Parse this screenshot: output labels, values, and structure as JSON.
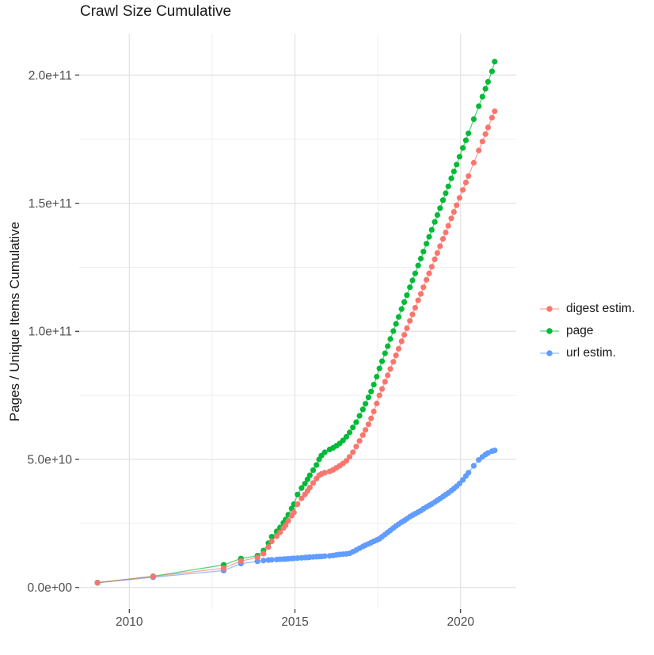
{
  "chart_data": {
    "type": "line-scatter",
    "title": "Crawl Size Cumulative",
    "xlabel": "",
    "ylabel": "Pages / Unique Items Cumulative",
    "value_unit": "counts; point y-values stored in billions (multiply by 1e9)",
    "grid": true,
    "legend_position": "right",
    "x_axis": {
      "major_ticks": [
        {
          "label": "2010",
          "value": 2010
        },
        {
          "label": "2015",
          "value": 2015
        },
        {
          "label": "2020",
          "value": 2020
        }
      ],
      "minor_gridlines": [
        2012.5,
        2017.5
      ],
      "range": [
        2008.5,
        2021.7
      ]
    },
    "y_axis": {
      "major_ticks": [
        {
          "label": "0.0e+00",
          "value_e9": 0
        },
        {
          "label": "5.0e+10",
          "value_e9": 50
        },
        {
          "label": "1.0e+11",
          "value_e9": 100
        },
        {
          "label": "1.5e+11",
          "value_e9": 150
        },
        {
          "label": "2.0e+11",
          "value_e9": 200
        }
      ],
      "minor_gridlines_e9": [
        25,
        75,
        125,
        175
      ],
      "range_e9": [
        -8,
        216
      ]
    },
    "draw_order": [
      "url estim.",
      "page",
      "digest estim."
    ],
    "series": [
      {
        "name": "digest estim.",
        "color": "#F8766D",
        "points": [
          [
            2009.04,
            1.9
          ],
          [
            2010.72,
            4.3
          ],
          [
            2012.85,
            7.5
          ],
          [
            2013.37,
            10.3
          ],
          [
            2013.87,
            11.7
          ],
          [
            2014.05,
            13.2
          ],
          [
            2014.2,
            15.8
          ],
          [
            2014.3,
            18.0
          ],
          [
            2014.45,
            20.0
          ],
          [
            2014.55,
            21.5
          ],
          [
            2014.65,
            23.2
          ],
          [
            2014.72,
            24.3
          ],
          [
            2014.8,
            26.0
          ],
          [
            2014.9,
            28.0
          ],
          [
            2014.97,
            29.3
          ],
          [
            2015.08,
            32.5
          ],
          [
            2015.2,
            34.8
          ],
          [
            2015.3,
            36.3
          ],
          [
            2015.38,
            37.7
          ],
          [
            2015.45,
            39.0
          ],
          [
            2015.55,
            40.8
          ],
          [
            2015.65,
            42.5
          ],
          [
            2015.73,
            43.8
          ],
          [
            2015.8,
            44.3
          ],
          [
            2015.9,
            44.8
          ],
          [
            2016.05,
            45.3
          ],
          [
            2016.15,
            45.9
          ],
          [
            2016.25,
            46.7
          ],
          [
            2016.35,
            47.5
          ],
          [
            2016.45,
            48.4
          ],
          [
            2016.55,
            49.4
          ],
          [
            2016.65,
            51.0
          ],
          [
            2016.75,
            52.8
          ],
          [
            2016.85,
            55.0
          ],
          [
            2016.95,
            57.2
          ],
          [
            2017.05,
            59.5
          ],
          [
            2017.13,
            61.5
          ],
          [
            2017.22,
            63.7
          ],
          [
            2017.3,
            66.0
          ],
          [
            2017.38,
            68.7
          ],
          [
            2017.47,
            71.8
          ],
          [
            2017.55,
            75.0
          ],
          [
            2017.63,
            77.5
          ],
          [
            2017.72,
            80.3
          ],
          [
            2017.8,
            82.8
          ],
          [
            2017.88,
            85.3
          ],
          [
            2017.97,
            88.1
          ],
          [
            2018.05,
            90.6
          ],
          [
            2018.13,
            93.2
          ],
          [
            2018.22,
            96.1
          ],
          [
            2018.3,
            98.6
          ],
          [
            2018.38,
            101.2
          ],
          [
            2018.47,
            104.1
          ],
          [
            2018.55,
            106.6
          ],
          [
            2018.63,
            109.2
          ],
          [
            2018.72,
            112.1
          ],
          [
            2018.8,
            114.6
          ],
          [
            2018.88,
            117.2
          ],
          [
            2018.97,
            120.1
          ],
          [
            2019.05,
            122.6
          ],
          [
            2019.13,
            125.2
          ],
          [
            2019.22,
            128.1
          ],
          [
            2019.3,
            130.6
          ],
          [
            2019.38,
            133.2
          ],
          [
            2019.47,
            136.1
          ],
          [
            2019.55,
            138.6
          ],
          [
            2019.63,
            141.2
          ],
          [
            2019.72,
            144.1
          ],
          [
            2019.8,
            146.6
          ],
          [
            2019.88,
            149.2
          ],
          [
            2019.97,
            152.1
          ],
          [
            2020.07,
            155.2
          ],
          [
            2020.16,
            158.1
          ],
          [
            2020.24,
            160.6
          ],
          [
            2020.4,
            165.8
          ],
          [
            2020.55,
            170.6
          ],
          [
            2020.66,
            174.1
          ],
          [
            2020.75,
            177.0
          ],
          [
            2020.83,
            179.6
          ],
          [
            2020.95,
            183.4
          ],
          [
            2021.03,
            185.9
          ]
        ]
      },
      {
        "name": "page",
        "color": "#00BA38",
        "points": [
          [
            2009.04,
            1.85
          ],
          [
            2010.72,
            4.35
          ],
          [
            2012.85,
            8.8
          ],
          [
            2013.37,
            11.3
          ],
          [
            2013.87,
            12.4
          ],
          [
            2014.05,
            14.4
          ],
          [
            2014.2,
            17.3
          ],
          [
            2014.3,
            19.8
          ],
          [
            2014.45,
            21.9
          ],
          [
            2014.55,
            23.4
          ],
          [
            2014.65,
            25.2
          ],
          [
            2014.72,
            26.5
          ],
          [
            2014.8,
            28.4
          ],
          [
            2014.9,
            30.8
          ],
          [
            2014.97,
            32.5
          ],
          [
            2015.08,
            36.3
          ],
          [
            2015.2,
            38.8
          ],
          [
            2015.3,
            40.5
          ],
          [
            2015.38,
            42.2
          ],
          [
            2015.45,
            43.8
          ],
          [
            2015.55,
            45.8
          ],
          [
            2015.65,
            47.8
          ],
          [
            2015.73,
            50.0
          ],
          [
            2015.8,
            51.5
          ],
          [
            2015.9,
            52.8
          ],
          [
            2016.05,
            53.9
          ],
          [
            2016.15,
            54.5
          ],
          [
            2016.25,
            55.3
          ],
          [
            2016.35,
            56.2
          ],
          [
            2016.45,
            57.4
          ],
          [
            2016.55,
            58.8
          ],
          [
            2016.65,
            60.5
          ],
          [
            2016.75,
            62.5
          ],
          [
            2016.85,
            64.5
          ],
          [
            2016.95,
            67.0
          ],
          [
            2017.05,
            69.5
          ],
          [
            2017.13,
            71.7
          ],
          [
            2017.22,
            74.2
          ],
          [
            2017.3,
            76.5
          ],
          [
            2017.38,
            79.2
          ],
          [
            2017.47,
            82.3
          ],
          [
            2017.55,
            85.5
          ],
          [
            2017.63,
            88.3
          ],
          [
            2017.72,
            91.4
          ],
          [
            2017.8,
            94.2
          ],
          [
            2017.88,
            97.0
          ],
          [
            2017.97,
            100.1
          ],
          [
            2018.05,
            102.9
          ],
          [
            2018.13,
            105.6
          ],
          [
            2018.22,
            108.7
          ],
          [
            2018.3,
            111.4
          ],
          [
            2018.38,
            114.1
          ],
          [
            2018.47,
            117.2
          ],
          [
            2018.55,
            119.9
          ],
          [
            2018.63,
            122.6
          ],
          [
            2018.72,
            125.7
          ],
          [
            2018.8,
            128.4
          ],
          [
            2018.88,
            131.1
          ],
          [
            2018.97,
            134.2
          ],
          [
            2019.05,
            136.9
          ],
          [
            2019.13,
            139.6
          ],
          [
            2019.22,
            142.7
          ],
          [
            2019.3,
            145.4
          ],
          [
            2019.38,
            148.1
          ],
          [
            2019.47,
            151.2
          ],
          [
            2019.55,
            153.9
          ],
          [
            2019.63,
            156.6
          ],
          [
            2019.72,
            159.7
          ],
          [
            2019.8,
            162.4
          ],
          [
            2019.88,
            165.1
          ],
          [
            2019.97,
            168.2
          ],
          [
            2020.07,
            171.6
          ],
          [
            2020.16,
            174.6
          ],
          [
            2020.24,
            177.3
          ],
          [
            2020.4,
            182.8
          ],
          [
            2020.55,
            187.9
          ],
          [
            2020.66,
            191.6
          ],
          [
            2020.75,
            194.7
          ],
          [
            2020.83,
            197.4
          ],
          [
            2020.95,
            201.5
          ],
          [
            2021.03,
            205.3
          ]
        ]
      },
      {
        "name": "url estim.",
        "color": "#619CFF",
        "points": [
          [
            2009.04,
            1.8
          ],
          [
            2010.72,
            4.0
          ],
          [
            2012.85,
            6.6
          ],
          [
            2013.37,
            9.3
          ],
          [
            2013.87,
            10.2
          ],
          [
            2014.05,
            10.5
          ],
          [
            2014.2,
            10.7
          ],
          [
            2014.3,
            10.8
          ],
          [
            2014.45,
            10.9
          ],
          [
            2014.55,
            11.0
          ],
          [
            2014.65,
            11.05
          ],
          [
            2014.72,
            11.1
          ],
          [
            2014.8,
            11.2
          ],
          [
            2014.9,
            11.3
          ],
          [
            2014.97,
            11.35
          ],
          [
            2015.08,
            11.45
          ],
          [
            2015.2,
            11.55
          ],
          [
            2015.3,
            11.65
          ],
          [
            2015.38,
            11.7
          ],
          [
            2015.45,
            11.8
          ],
          [
            2015.55,
            11.9
          ],
          [
            2015.65,
            12.0
          ],
          [
            2015.73,
            12.05
          ],
          [
            2015.8,
            12.1
          ],
          [
            2015.9,
            12.2
          ],
          [
            2016.05,
            12.35
          ],
          [
            2016.15,
            12.5
          ],
          [
            2016.25,
            12.7
          ],
          [
            2016.35,
            12.9
          ],
          [
            2016.45,
            13.0
          ],
          [
            2016.55,
            13.1
          ],
          [
            2016.65,
            13.3
          ],
          [
            2016.75,
            13.9
          ],
          [
            2016.85,
            14.6
          ],
          [
            2016.95,
            15.3
          ],
          [
            2017.05,
            16.0
          ],
          [
            2017.13,
            16.5
          ],
          [
            2017.22,
            17.0
          ],
          [
            2017.3,
            17.5
          ],
          [
            2017.38,
            18.0
          ],
          [
            2017.47,
            18.5
          ],
          [
            2017.55,
            19.0
          ],
          [
            2017.63,
            19.8
          ],
          [
            2017.72,
            20.7
          ],
          [
            2017.8,
            21.5
          ],
          [
            2017.88,
            22.3
          ],
          [
            2017.97,
            23.2
          ],
          [
            2018.05,
            24.0
          ],
          [
            2018.13,
            24.7
          ],
          [
            2018.22,
            25.5
          ],
          [
            2018.3,
            26.1
          ],
          [
            2018.38,
            26.8
          ],
          [
            2018.47,
            27.6
          ],
          [
            2018.55,
            28.2
          ],
          [
            2018.63,
            28.8
          ],
          [
            2018.72,
            29.4
          ],
          [
            2018.8,
            30.0
          ],
          [
            2018.88,
            30.7
          ],
          [
            2018.97,
            31.4
          ],
          [
            2019.05,
            32.0
          ],
          [
            2019.13,
            32.6
          ],
          [
            2019.22,
            33.3
          ],
          [
            2019.3,
            34.0
          ],
          [
            2019.38,
            34.7
          ],
          [
            2019.47,
            35.5
          ],
          [
            2019.55,
            36.2
          ],
          [
            2019.63,
            36.9
          ],
          [
            2019.72,
            37.8
          ],
          [
            2019.8,
            38.6
          ],
          [
            2019.88,
            39.5
          ],
          [
            2019.97,
            40.6
          ],
          [
            2020.07,
            42.0
          ],
          [
            2020.16,
            43.5
          ],
          [
            2020.24,
            44.8
          ],
          [
            2020.4,
            47.5
          ],
          [
            2020.55,
            49.8
          ],
          [
            2020.66,
            51.0
          ],
          [
            2020.75,
            51.9
          ],
          [
            2020.83,
            52.5
          ],
          [
            2020.95,
            53.2
          ],
          [
            2021.03,
            53.5
          ]
        ]
      }
    ]
  }
}
